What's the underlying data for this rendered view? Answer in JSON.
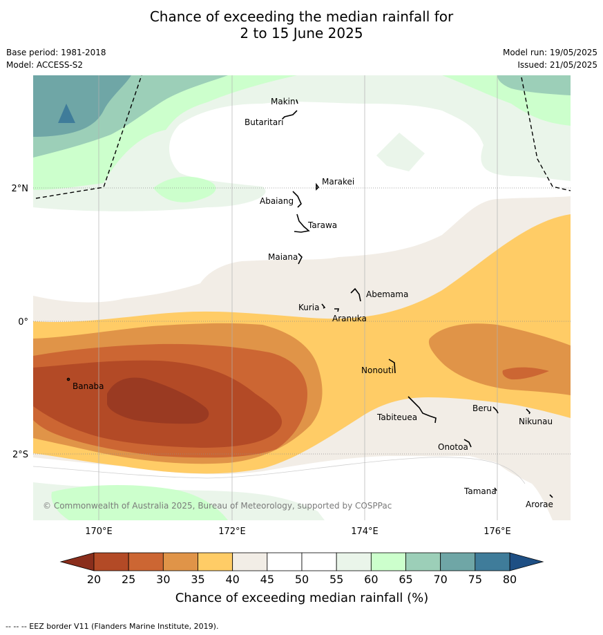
{
  "title_line1": "Chance of exceeding the median rainfall for",
  "title_line2": "2 to 15 June 2025",
  "base_period": "Base period: 1981-2018",
  "model": "Model: ACCESS-S2",
  "model_run": "Model run: 19/05/2025",
  "issued": "Issued: 21/05/2025",
  "lon_ticks": [
    "170°E",
    "172°E",
    "174°E",
    "176°E"
  ],
  "lat_ticks": [
    "2°N",
    "0°",
    "2°S"
  ],
  "places": [
    "Makin",
    "Butaritari",
    "Marakei",
    "Abaiang",
    "Tarawa",
    "Maiana",
    "Abemama",
    "Kuria",
    "Aranuka",
    "Nonouti",
    "Banaba",
    "Tabiteuea",
    "Beru",
    "Nikunau",
    "Onotoa",
    "Tamana",
    "Arorae"
  ],
  "copyright": "© Commonwealth of Australia 2025, Bureau of Meteorology, supported by COSPPac",
  "colorbar": {
    "ticks": [
      "20",
      "25",
      "30",
      "35",
      "40",
      "45",
      "50",
      "55",
      "60",
      "65",
      "70",
      "75",
      "80"
    ],
    "colors": [
      "#b34a26",
      "#cc6633",
      "#e09448",
      "#ffcc66",
      "#f2ede6",
      "#ffffff",
      "#ffffff",
      "#eaf5ea",
      "#ccffcc",
      "#9ccfb8",
      "#6fa6a6",
      "#3f7c9a"
    ],
    "low_color": "#8a2e1c",
    "high_color": "#1e4f84",
    "label": "Chance of exceeding median rainfall (%)"
  },
  "footer": "--  --  -- EEZ border V11 (Flanders Marine Institute, 2019)."
}
